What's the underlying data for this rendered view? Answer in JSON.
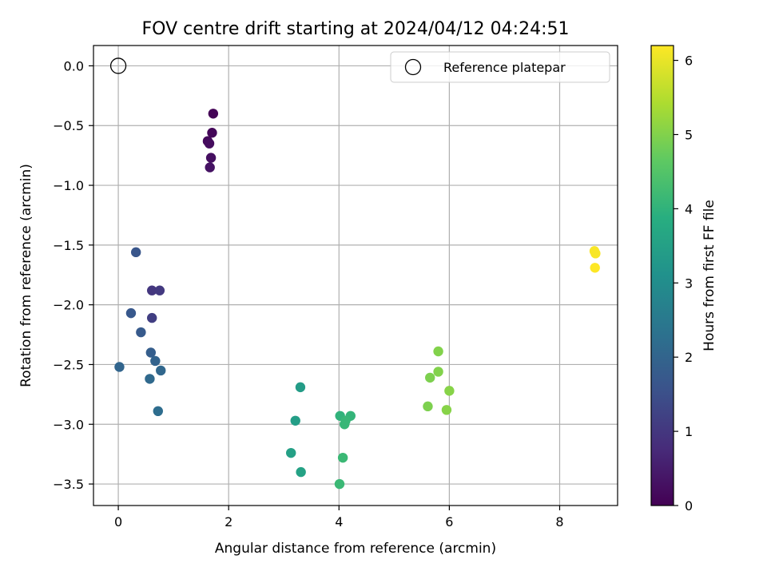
{
  "chart_data": {
    "type": "scatter",
    "title": "FOV centre drift starting at 2024/04/12 04:24:51",
    "xlabel": "Angular distance from reference (arcmin)",
    "ylabel": "Rotation from reference (arcmin)",
    "xlim": [
      -0.45,
      9.05
    ],
    "ylim": [
      -3.68,
      0.17
    ],
    "x_ticks": [
      0,
      2,
      4,
      6,
      8
    ],
    "x_tick_labels": [
      "0",
      "2",
      "4",
      "6",
      "8"
    ],
    "y_ticks": [
      0.0,
      -0.5,
      -1.0,
      -1.5,
      -2.0,
      -2.5,
      -3.0,
      -3.5
    ],
    "y_tick_labels": [
      "0.0",
      "−0.5",
      "−1.0",
      "−1.5",
      "−2.0",
      "−2.5",
      "−3.0",
      "−3.5"
    ],
    "grid": true,
    "legend": {
      "placement": "top-right",
      "entries": [
        "Reference platepar"
      ]
    },
    "colorbar": {
      "label": "Hours from first FF file",
      "range": [
        0,
        6.2
      ],
      "ticks": [
        0,
        1,
        2,
        3,
        4,
        5,
        6
      ],
      "tick_labels": [
        "0",
        "1",
        "2",
        "3",
        "4",
        "5",
        "6"
      ],
      "colormap": "viridis"
    },
    "reference_point": {
      "x": 0.0,
      "y": 0.0,
      "name": "Reference platepar"
    },
    "points": [
      {
        "x": 1.72,
        "y": -0.4,
        "c": 0.05
      },
      {
        "x": 1.7,
        "y": -0.56,
        "c": 0.1
      },
      {
        "x": 1.62,
        "y": -0.63,
        "c": 0.15
      },
      {
        "x": 1.65,
        "y": -0.65,
        "c": 0.2
      },
      {
        "x": 1.68,
        "y": -0.77,
        "c": 0.25
      },
      {
        "x": 1.66,
        "y": -0.85,
        "c": 0.3
      },
      {
        "x": 0.61,
        "y": -1.88,
        "c": 1.0
      },
      {
        "x": 0.75,
        "y": -1.88,
        "c": 1.05
      },
      {
        "x": 0.61,
        "y": -2.11,
        "c": 1.15
      },
      {
        "x": 0.32,
        "y": -1.56,
        "c": 1.65
      },
      {
        "x": 0.23,
        "y": -2.07,
        "c": 1.7
      },
      {
        "x": 0.41,
        "y": -2.23,
        "c": 1.75
      },
      {
        "x": 0.59,
        "y": -2.4,
        "c": 1.85
      },
      {
        "x": 0.67,
        "y": -2.47,
        "c": 1.95
      },
      {
        "x": 0.02,
        "y": -2.52,
        "c": 2.0
      },
      {
        "x": 0.77,
        "y": -2.55,
        "c": 2.05
      },
      {
        "x": 0.57,
        "y": -2.62,
        "c": 2.1
      },
      {
        "x": 0.72,
        "y": -2.89,
        "c": 2.2
      },
      {
        "x": 3.3,
        "y": -2.69,
        "c": 3.4
      },
      {
        "x": 3.21,
        "y": -2.97,
        "c": 3.45
      },
      {
        "x": 3.13,
        "y": -3.24,
        "c": 3.5
      },
      {
        "x": 3.31,
        "y": -3.4,
        "c": 3.55
      },
      {
        "x": 4.02,
        "y": -2.93,
        "c": 4.0
      },
      {
        "x": 4.21,
        "y": -2.93,
        "c": 4.05
      },
      {
        "x": 4.12,
        "y": -2.97,
        "c": 4.1
      },
      {
        "x": 4.1,
        "y": -3.0,
        "c": 4.1
      },
      {
        "x": 4.07,
        "y": -3.28,
        "c": 4.15
      },
      {
        "x": 4.01,
        "y": -3.5,
        "c": 4.15
      },
      {
        "x": 5.8,
        "y": -2.39,
        "c": 5.0
      },
      {
        "x": 5.8,
        "y": -2.56,
        "c": 5.0
      },
      {
        "x": 5.65,
        "y": -2.61,
        "c": 4.95
      },
      {
        "x": 5.61,
        "y": -2.85,
        "c": 4.95
      },
      {
        "x": 6.0,
        "y": -2.72,
        "c": 5.05
      },
      {
        "x": 5.95,
        "y": -2.88,
        "c": 5.05
      },
      {
        "x": 8.63,
        "y": -1.55,
        "c": 6.15
      },
      {
        "x": 8.65,
        "y": -1.57,
        "c": 6.15
      },
      {
        "x": 8.64,
        "y": -1.69,
        "c": 6.2
      }
    ]
  }
}
